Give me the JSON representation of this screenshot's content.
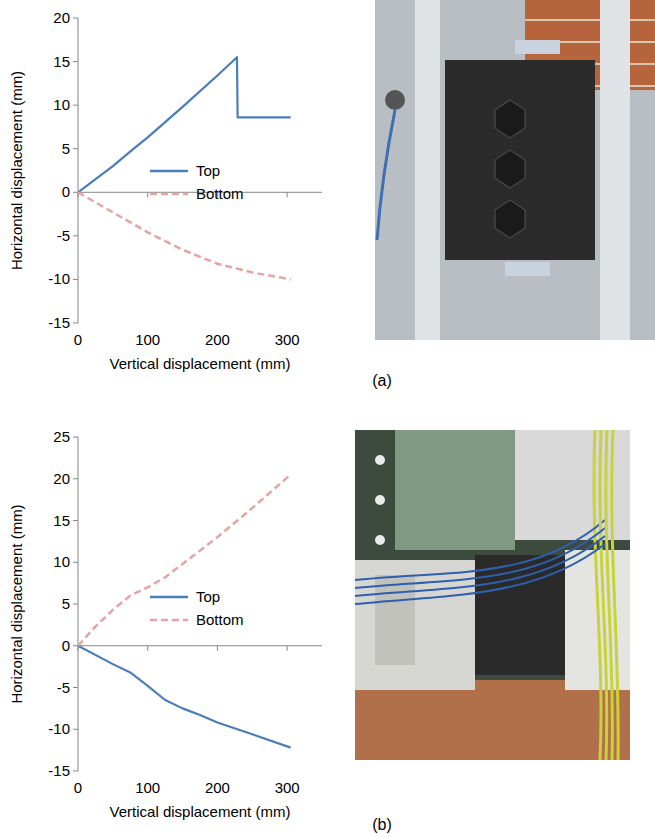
{
  "chart_data": [
    {
      "type": "line",
      "panel_label": "(a)",
      "x_label": "Vertical displacement (mm)",
      "y_label": "Horizontal displacement (mm)",
      "xlim": [
        0,
        350
      ],
      "xticks": [
        0,
        100,
        200,
        300
      ],
      "ylim": [
        -15,
        20
      ],
      "yticks": [
        -15,
        -10,
        -5,
        0,
        5,
        10,
        15,
        20
      ],
      "grid": false,
      "legend": "center",
      "series": [
        {
          "name": "Top",
          "color": "#4a7ebb",
          "line_style": "solid",
          "x": [
            0,
            20,
            50,
            80,
            100,
            150,
            200,
            228,
            229,
            305
          ],
          "values": [
            0,
            1.2,
            3,
            5,
            6.3,
            9.8,
            13.4,
            15.5,
            8.6,
            8.6
          ]
        },
        {
          "name": "Bottom",
          "color": "#e6a3a3",
          "line_style": "dashed",
          "x": [
            0,
            50,
            100,
            150,
            200,
            250,
            305
          ],
          "values": [
            0,
            -2.3,
            -4.6,
            -6.6,
            -8.2,
            -9.2,
            -10
          ]
        }
      ]
    },
    {
      "type": "line",
      "panel_label": "(b)",
      "x_label": "Vertical displacement (mm)",
      "y_label": "Horizontal displacement (mm)",
      "xlim": [
        0,
        350
      ],
      "xticks": [
        0,
        100,
        200,
        300
      ],
      "ylim": [
        -15,
        25
      ],
      "yticks": [
        -15,
        -10,
        -5,
        0,
        5,
        10,
        15,
        20,
        25
      ],
      "grid": false,
      "legend": "center",
      "series": [
        {
          "name": "Top",
          "color": "#4a7ebb",
          "line_style": "solid",
          "x": [
            0,
            50,
            75,
            100,
            125,
            150,
            175,
            200,
            250,
            305
          ],
          "values": [
            0,
            -2.2,
            -3.2,
            -4.8,
            -6.5,
            -7.5,
            -8.3,
            -9.2,
            -10.6,
            -12.2
          ]
        },
        {
          "name": "Bottom",
          "color": "#e6a3a3",
          "line_style": "dashed",
          "x": [
            0,
            25,
            50,
            75,
            100,
            125,
            150,
            200,
            250,
            305
          ],
          "values": [
            0,
            2.3,
            4.3,
            6,
            7,
            8.2,
            9.8,
            13,
            16.5,
            20.5
          ]
        }
      ]
    }
  ]
}
